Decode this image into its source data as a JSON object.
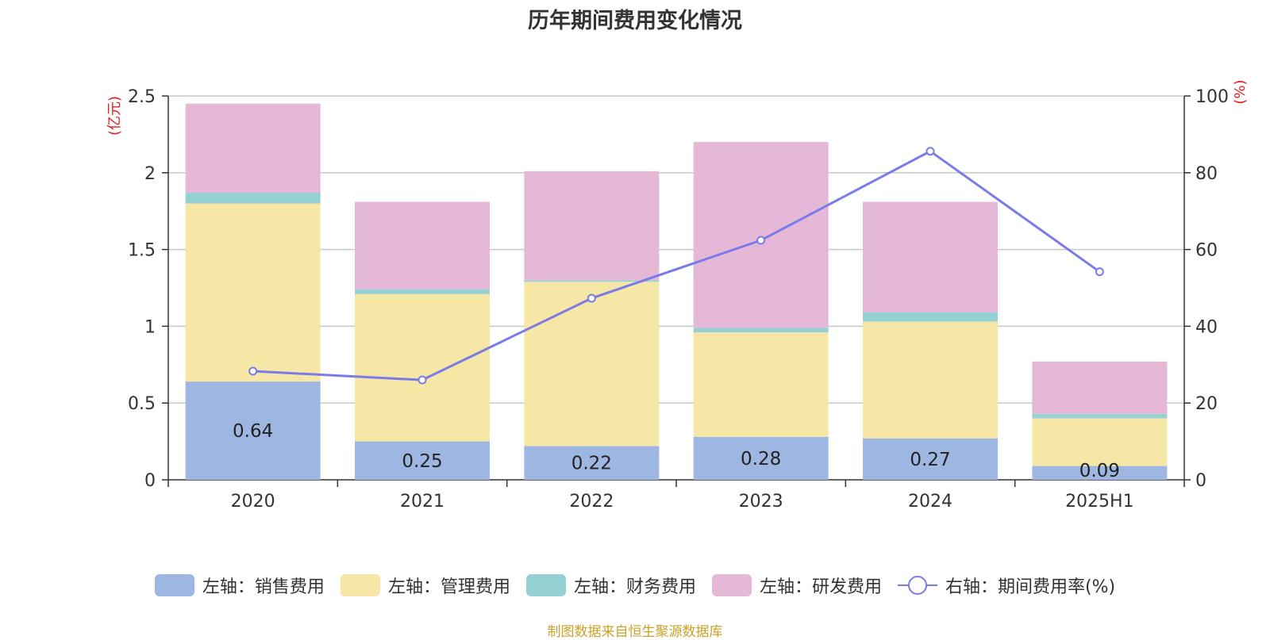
{
  "chart_data": {
    "type": "bar",
    "title": "历年期间费用变化情况",
    "categories": [
      "2020",
      "2021",
      "2022",
      "2023",
      "2024",
      "2025H1"
    ],
    "stacked": true,
    "left_axis": {
      "label": "(亿元)",
      "range": [
        0,
        2.5
      ],
      "ticks": [
        "0",
        "0.5",
        "1",
        "1.5",
        "2",
        "2.5"
      ]
    },
    "right_axis": {
      "label": "(%)",
      "range": [
        0,
        100
      ],
      "ticks": [
        "0",
        "20",
        "40",
        "60",
        "80",
        "100"
      ]
    },
    "series": [
      {
        "name": "左轴：销售费用",
        "color": "#9db7e2",
        "values": [
          0.64,
          0.25,
          0.22,
          0.28,
          0.27,
          0.09
        ],
        "labels": [
          "0.64",
          "0.25",
          "0.22",
          "0.28",
          "0.27",
          "0.09"
        ]
      },
      {
        "name": "左轴：管理费用",
        "color": "#f7e7a6",
        "values": [
          1.16,
          0.96,
          1.07,
          0.68,
          0.76,
          0.31
        ]
      },
      {
        "name": "左轴：财务费用",
        "color": "#95d1d3",
        "values": [
          0.07,
          0.03,
          0.01,
          0.03,
          0.06,
          0.03
        ]
      },
      {
        "name": "左轴：研发费用",
        "color": "#e6b8d8",
        "values": [
          0.58,
          0.57,
          0.71,
          1.21,
          0.72,
          0.34
        ]
      }
    ],
    "line_series": {
      "name": "右轴：期间费用率(%)",
      "color": "#7b7be8",
      "values": [
        28.3,
        26.0,
        47.3,
        62.4,
        85.6,
        54.2
      ]
    },
    "grid": true,
    "legend_position": "bottom"
  },
  "source_note": "制图数据来自恒生聚源数据库"
}
